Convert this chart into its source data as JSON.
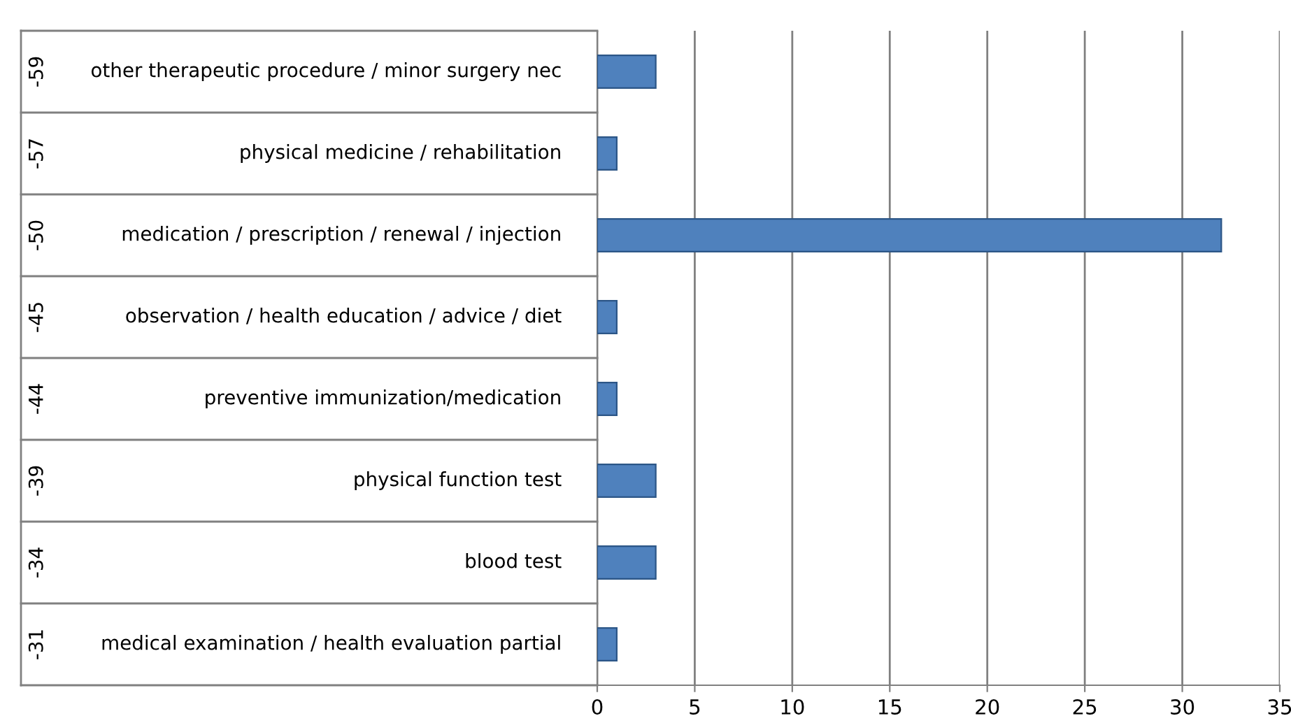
{
  "chart_data": {
    "type": "bar",
    "orientation": "horizontal",
    "categories": [
      "other therapeutic procedure / minor surgery nec",
      "physical medicine / rehabilitation",
      "medication / prescription / renewal / injection",
      "observation / health education / advice / diet",
      "preventive immunization/medication",
      "physical function test",
      "blood test",
      "medical examination / health evaluation partial"
    ],
    "values": [
      3,
      1,
      32,
      1,
      1,
      3,
      3,
      1
    ],
    "color": "#4f81bd",
    "xlim": [
      0,
      35
    ],
    "xticks": [
      0,
      5,
      10,
      15,
      20,
      25,
      30,
      35
    ],
    "grid": "x",
    "annotations": [
      "-59",
      "-57",
      "-50",
      "-45",
      "-44",
      "-39",
      "-34",
      "-31"
    ]
  }
}
